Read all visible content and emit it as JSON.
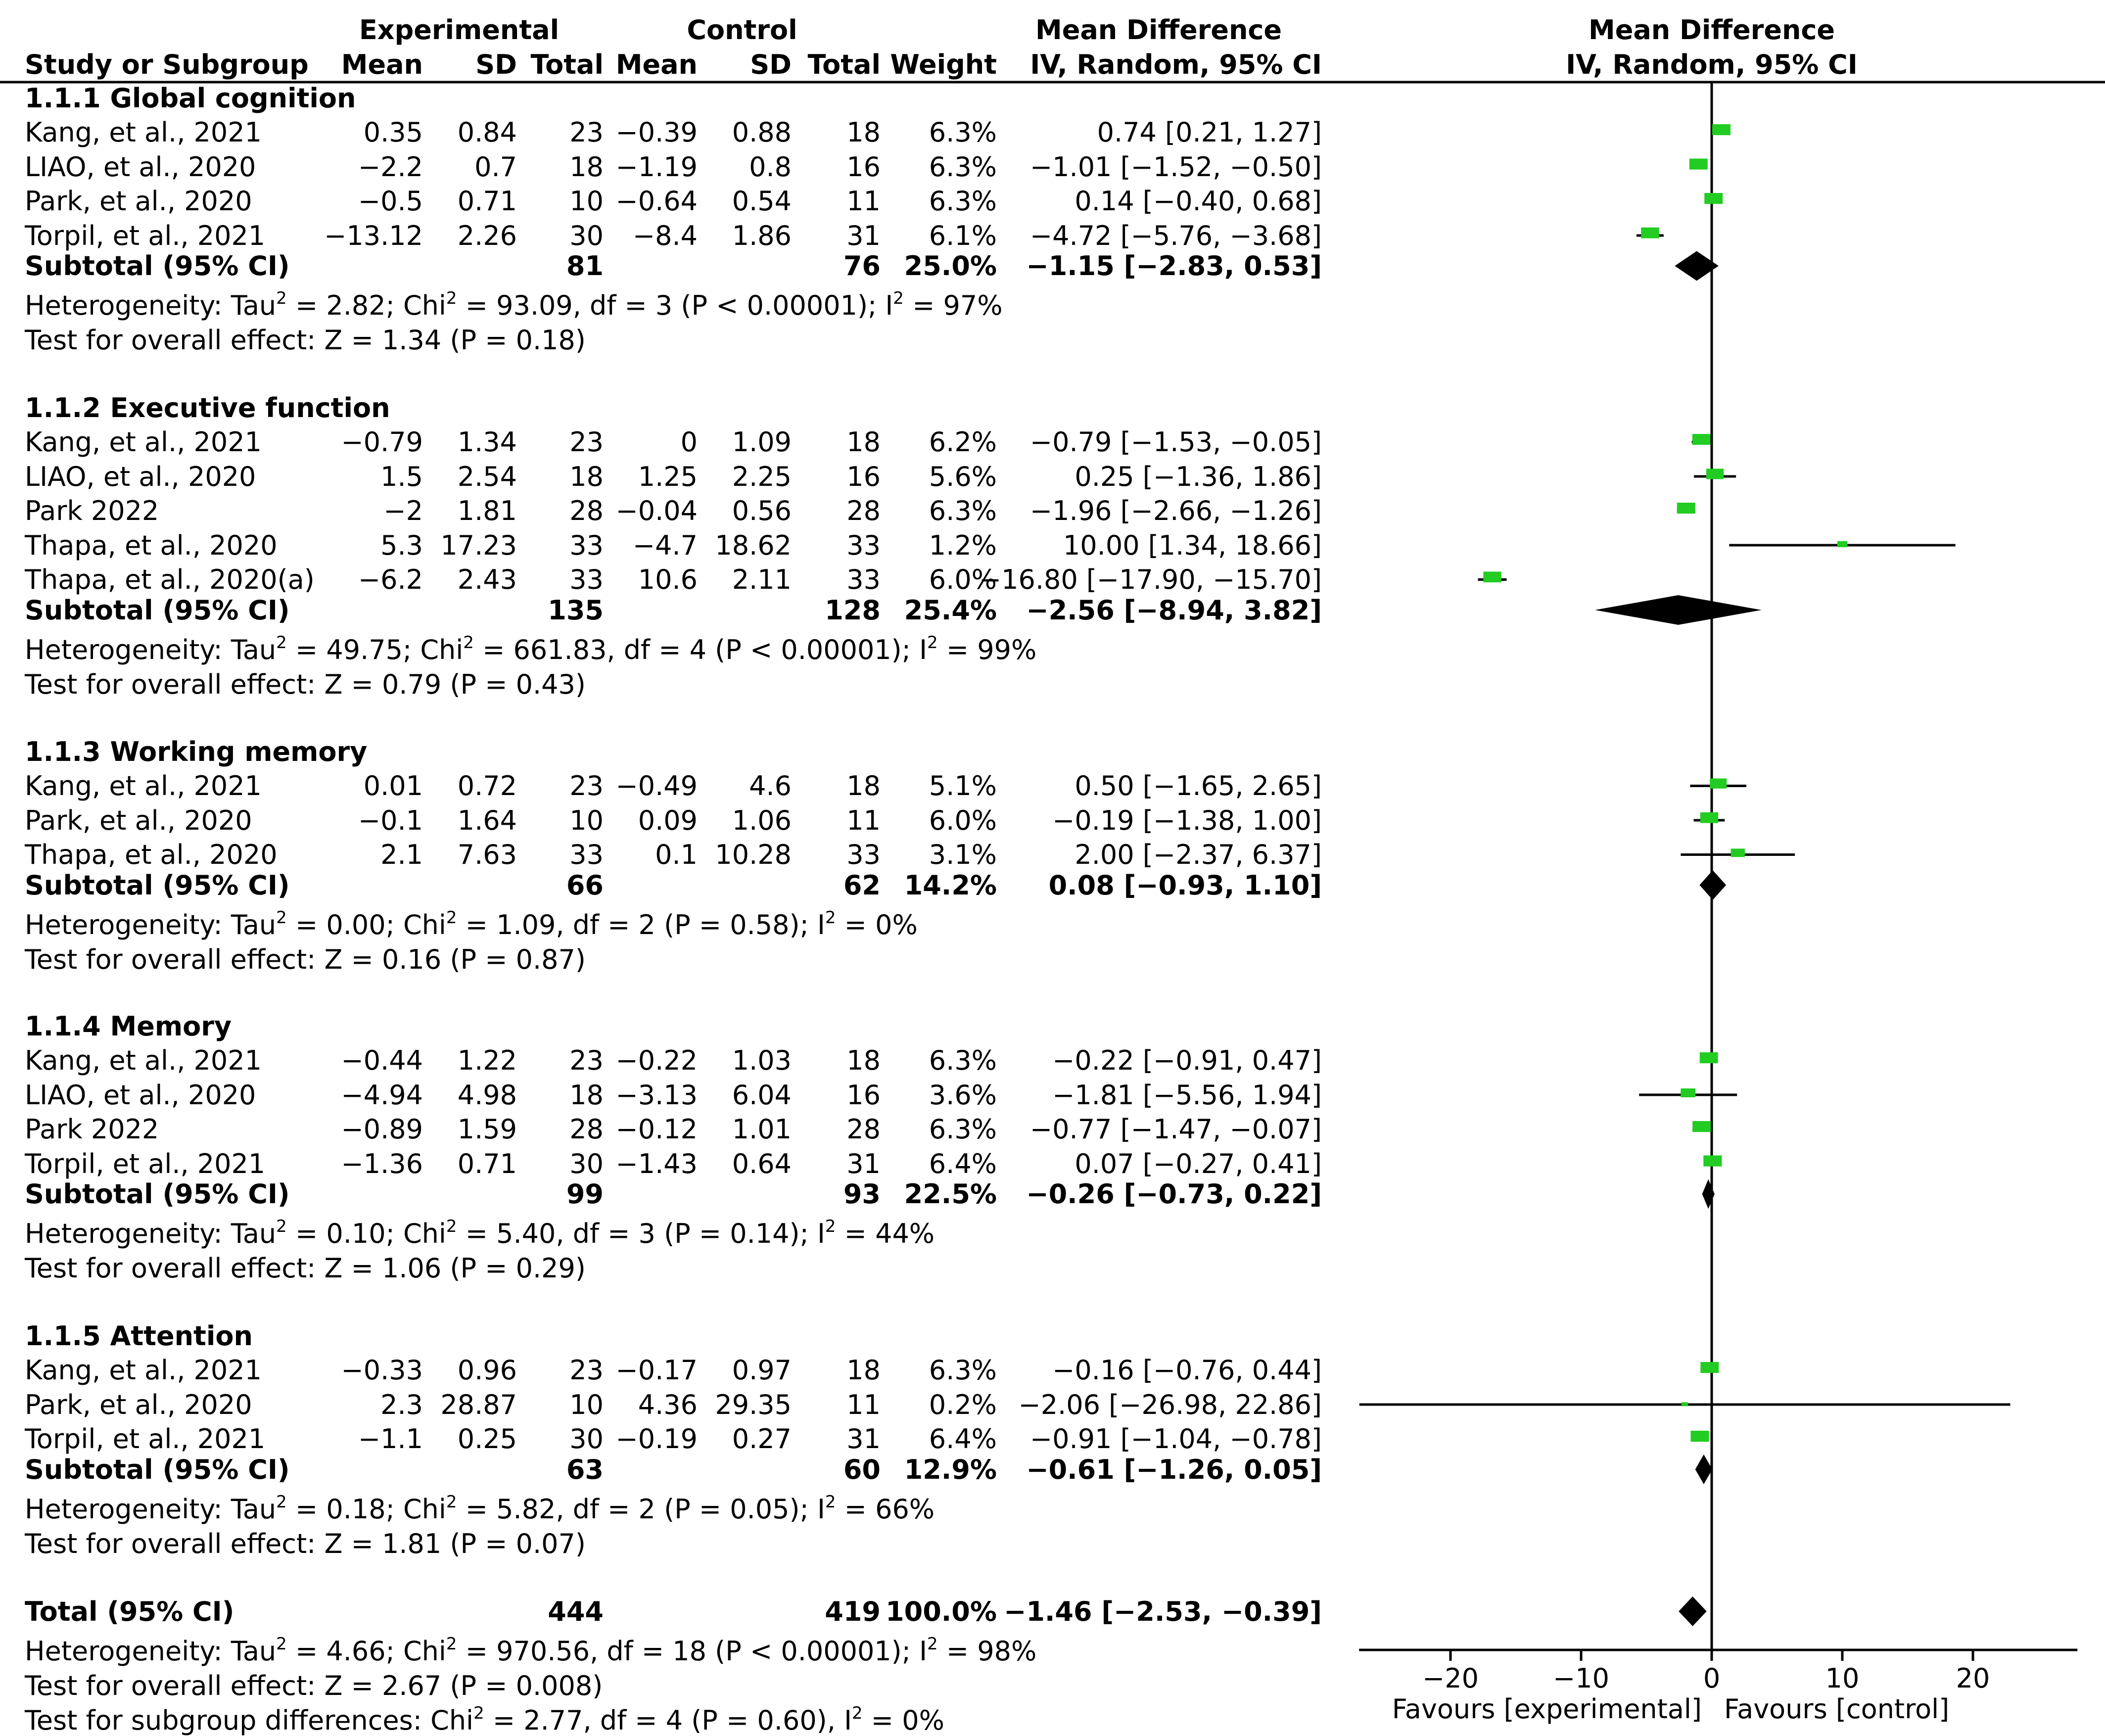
{
  "header": {
    "experimental": "Experimental",
    "control": "Control",
    "mean_difference_left": "Mean Difference",
    "mean_difference_right": "Mean Difference",
    "study_col": "Study or Subgroup",
    "mean_e": "Mean",
    "sd_e": "SD",
    "total_e": "Total",
    "mean_c": "Mean",
    "sd_c": "SD",
    "total_c": "Total",
    "weight": "Weight",
    "method_left": "IV, Random, 95% CI",
    "method_right": "IV, Random, 95% CI"
  },
  "groups": [
    {
      "title": "1.1.1 Global cognition",
      "studies": [
        {
          "name": "Kang, et al., 2021",
          "mean_e": "0.35",
          "sd_e": "0.84",
          "total_e": "23",
          "mean_c": "−0.39",
          "sd_c": "0.88",
          "total_c": "18",
          "weight": "6.3%",
          "ci": "0.74 [0.21, 1.27]"
        },
        {
          "name": "LIAO, et al., 2020",
          "mean_e": "−2.2",
          "sd_e": "0.7",
          "total_e": "18",
          "mean_c": "−1.19",
          "sd_c": "0.8",
          "total_c": "16",
          "weight": "6.3%",
          "ci": "−1.01 [−1.52, −0.50]"
        },
        {
          "name": "Park, et al., 2020",
          "mean_e": "−0.5",
          "sd_e": "0.71",
          "total_e": "10",
          "mean_c": "−0.64",
          "sd_c": "0.54",
          "total_c": "11",
          "weight": "6.3%",
          "ci": "0.14 [−0.40, 0.68]"
        },
        {
          "name": "Torpil, et al., 2021",
          "mean_e": "−13.12",
          "sd_e": "2.26",
          "total_e": "30",
          "mean_c": "−8.4",
          "sd_c": "1.86",
          "total_c": "31",
          "weight": "6.1%",
          "ci": "−4.72 [−5.76, −3.68]"
        }
      ],
      "subtotal": {
        "label": "Subtotal (95% CI)",
        "total_e": "81",
        "total_c": "76",
        "weight": "25.0%",
        "ci": "−1.15 [−2.83, 0.53]"
      },
      "heterogeneity_prefix": "Heterogeneity: Tau",
      "heterogeneity_mid": " = 2.82; Chi",
      "heterogeneity_rest": " = 93.09, df = 3 (P < 0.00001); I",
      "heterogeneity_end": " = 97%",
      "overall": "Test for overall effect: Z = 1.34 (P = 0.18)"
    },
    {
      "title": "1.1.2 Executive function",
      "studies": [
        {
          "name": "Kang, et al., 2021",
          "mean_e": "−0.79",
          "sd_e": "1.34",
          "total_e": "23",
          "mean_c": "0",
          "sd_c": "1.09",
          "total_c": "18",
          "weight": "6.2%",
          "ci": "−0.79 [−1.53, −0.05]"
        },
        {
          "name": "LIAO, et al., 2020",
          "mean_e": "1.5",
          "sd_e": "2.54",
          "total_e": "18",
          "mean_c": "1.25",
          "sd_c": "2.25",
          "total_c": "16",
          "weight": "5.6%",
          "ci": "0.25 [−1.36, 1.86]"
        },
        {
          "name": "Park 2022",
          "mean_e": "−2",
          "sd_e": "1.81",
          "total_e": "28",
          "mean_c": "−0.04",
          "sd_c": "0.56",
          "total_c": "28",
          "weight": "6.3%",
          "ci": "−1.96 [−2.66, −1.26]"
        },
        {
          "name": "Thapa, et al., 2020",
          "mean_e": "5.3",
          "sd_e": "17.23",
          "total_e": "33",
          "mean_c": "−4.7",
          "sd_c": "18.62",
          "total_c": "33",
          "weight": "1.2%",
          "ci": "10.00 [1.34, 18.66]"
        },
        {
          "name": "Thapa, et al., 2020(a)",
          "mean_e": "−6.2",
          "sd_e": "2.43",
          "total_e": "33",
          "mean_c": "10.6",
          "sd_c": "2.11",
          "total_c": "33",
          "weight": "6.0%",
          "ci": "−16.80 [−17.90, −15.70]"
        }
      ],
      "subtotal": {
        "label": "Subtotal (95% CI)",
        "total_e": "135",
        "total_c": "128",
        "weight": "25.4%",
        "ci": "−2.56 [−8.94, 3.82]"
      },
      "heterogeneity_prefix": "Heterogeneity: Tau",
      "heterogeneity_mid": " = 49.75; Chi",
      "heterogeneity_rest": " = 661.83, df = 4 (P < 0.00001); I",
      "heterogeneity_end": " = 99%",
      "overall": "Test for overall effect: Z = 0.79 (P = 0.43)"
    },
    {
      "title": "1.1.3 Working memory",
      "studies": [
        {
          "name": "Kang, et al., 2021",
          "mean_e": "0.01",
          "sd_e": "0.72",
          "total_e": "23",
          "mean_c": "−0.49",
          "sd_c": "4.6",
          "total_c": "18",
          "weight": "5.1%",
          "ci": "0.50 [−1.65, 2.65]"
        },
        {
          "name": "Park, et al., 2020",
          "mean_e": "−0.1",
          "sd_e": "1.64",
          "total_e": "10",
          "mean_c": "0.09",
          "sd_c": "1.06",
          "total_c": "11",
          "weight": "6.0%",
          "ci": "−0.19 [−1.38, 1.00]"
        },
        {
          "name": "Thapa, et al., 2020",
          "mean_e": "2.1",
          "sd_e": "7.63",
          "total_e": "33",
          "mean_c": "0.1",
          "sd_c": "10.28",
          "total_c": "33",
          "weight": "3.1%",
          "ci": "2.00 [−2.37, 6.37]"
        }
      ],
      "subtotal": {
        "label": "Subtotal (95% CI)",
        "total_e": "66",
        "total_c": "62",
        "weight": "14.2%",
        "ci": "0.08 [−0.93, 1.10]"
      },
      "heterogeneity_prefix": "Heterogeneity: Tau",
      "heterogeneity_mid": " = 0.00; Chi",
      "heterogeneity_rest": " = 1.09, df = 2 (P = 0.58); I",
      "heterogeneity_end": " = 0%",
      "overall": "Test for overall effect: Z = 0.16 (P = 0.87)"
    },
    {
      "title": "1.1.4 Memory",
      "studies": [
        {
          "name": "Kang, et al., 2021",
          "mean_e": "−0.44",
          "sd_e": "1.22",
          "total_e": "23",
          "mean_c": "−0.22",
          "sd_c": "1.03",
          "total_c": "18",
          "weight": "6.3%",
          "ci": "−0.22 [−0.91, 0.47]"
        },
        {
          "name": "LIAO, et al., 2020",
          "mean_e": "−4.94",
          "sd_e": "4.98",
          "total_e": "18",
          "mean_c": "−3.13",
          "sd_c": "6.04",
          "total_c": "16",
          "weight": "3.6%",
          "ci": "−1.81 [−5.56, 1.94]"
        },
        {
          "name": "Park 2022",
          "mean_e": "−0.89",
          "sd_e": "1.59",
          "total_e": "28",
          "mean_c": "−0.12",
          "sd_c": "1.01",
          "total_c": "28",
          "weight": "6.3%",
          "ci": "−0.77 [−1.47, −0.07]"
        },
        {
          "name": "Torpil, et al., 2021",
          "mean_e": "−1.36",
          "sd_e": "0.71",
          "total_e": "30",
          "mean_c": "−1.43",
          "sd_c": "0.64",
          "total_c": "31",
          "weight": "6.4%",
          "ci": "0.07 [−0.27, 0.41]"
        }
      ],
      "subtotal": {
        "label": "Subtotal (95% CI)",
        "total_e": "99",
        "total_c": "93",
        "weight": "22.5%",
        "ci": "−0.26 [−0.73, 0.22]"
      },
      "heterogeneity_prefix": "Heterogeneity: Tau",
      "heterogeneity_mid": " = 0.10; Chi",
      "heterogeneity_rest": " = 5.40, df = 3 (P = 0.14); I",
      "heterogeneity_end": " = 44%",
      "overall": "Test for overall effect: Z = 1.06 (P = 0.29)"
    },
    {
      "title": "1.1.5 Attention",
      "studies": [
        {
          "name": "Kang, et al., 2021",
          "mean_e": "−0.33",
          "sd_e": "0.96",
          "total_e": "23",
          "mean_c": "−0.17",
          "sd_c": "0.97",
          "total_c": "18",
          "weight": "6.3%",
          "ci": "−0.16 [−0.76, 0.44]"
        },
        {
          "name": "Park, et al., 2020",
          "mean_e": "2.3",
          "sd_e": "28.87",
          "total_e": "10",
          "mean_c": "4.36",
          "sd_c": "29.35",
          "total_c": "11",
          "weight": "0.2%",
          "ci": "−2.06 [−26.98, 22.86]"
        },
        {
          "name": "Torpil, et al., 2021",
          "mean_e": "−1.1",
          "sd_e": "0.25",
          "total_e": "30",
          "mean_c": "−0.19",
          "sd_c": "0.27",
          "total_c": "31",
          "weight": "6.4%",
          "ci": "−0.91 [−1.04, −0.78]"
        }
      ],
      "subtotal": {
        "label": "Subtotal (95% CI)",
        "total_e": "63",
        "total_c": "60",
        "weight": "12.9%",
        "ci": "−0.61 [−1.26, 0.05]"
      },
      "heterogeneity_prefix": "Heterogeneity: Tau",
      "heterogeneity_mid": " = 0.18; Chi",
      "heterogeneity_rest": " = 5.82, df = 2 (P = 0.05); I",
      "heterogeneity_end": " = 66%",
      "overall": "Test for overall effect: Z = 1.81 (P = 0.07)"
    }
  ],
  "total": {
    "label": "Total (95% CI)",
    "total_e": "444",
    "total_c": "419",
    "weight": "100.0%",
    "ci": "−1.46 [−2.53, −0.39]",
    "heterogeneity_prefix": "Heterogeneity: Tau",
    "heterogeneity_mid": " = 4.66; Chi",
    "heterogeneity_rest": " = 970.56, df = 18 (P < 0.00001); I",
    "heterogeneity_end": " = 98%",
    "overall": "Test for overall effect: Z = 2.67 (P = 0.008)",
    "subgroup_prefix": "Test for subgroup differences: Chi",
    "subgroup_mid": " = 2.77, df = 4 (P = 0.60), I",
    "subgroup_end": " = 0%"
  },
  "squared": "2",
  "colors": {
    "marker": "#22cc22",
    "line": "#000000"
  },
  "chart_data": {
    "type": "forest",
    "title": "Mean Difference IV, Random, 95% CI",
    "xlim": [
      -27,
      28
    ],
    "ticks": [
      -20,
      -10,
      0,
      10,
      20
    ],
    "tick_labels": [
      "−20",
      "−10",
      "0",
      "10",
      "20"
    ],
    "xlabel_left": "Favours [experimental]",
    "xlabel_right": "Favours [control]",
    "null_value": 0,
    "groups": [
      {
        "name": "1.1.1 Global cognition",
        "studies": [
          {
            "name": "Kang, et al., 2021",
            "md": 0.74,
            "lo": 0.21,
            "hi": 1.27,
            "weight": 6.3
          },
          {
            "name": "LIAO, et al., 2020",
            "md": -1.01,
            "lo": -1.52,
            "hi": -0.5,
            "weight": 6.3
          },
          {
            "name": "Park, et al., 2020",
            "md": 0.14,
            "lo": -0.4,
            "hi": 0.68,
            "weight": 6.3
          },
          {
            "name": "Torpil, et al., 2021",
            "md": -4.72,
            "lo": -5.76,
            "hi": -3.68,
            "weight": 6.1
          }
        ],
        "subtotal": {
          "md": -1.15,
          "lo": -2.83,
          "hi": 0.53
        }
      },
      {
        "name": "1.1.2 Executive function",
        "studies": [
          {
            "name": "Kang, et al., 2021",
            "md": -0.79,
            "lo": -1.53,
            "hi": -0.05,
            "weight": 6.2
          },
          {
            "name": "LIAO, et al., 2020",
            "md": 0.25,
            "lo": -1.36,
            "hi": 1.86,
            "weight": 5.6
          },
          {
            "name": "Park 2022",
            "md": -1.96,
            "lo": -2.66,
            "hi": -1.26,
            "weight": 6.3
          },
          {
            "name": "Thapa, et al., 2020",
            "md": 10.0,
            "lo": 1.34,
            "hi": 18.66,
            "weight": 1.2
          },
          {
            "name": "Thapa, et al., 2020(a)",
            "md": -16.8,
            "lo": -17.9,
            "hi": -15.7,
            "weight": 6.0
          }
        ],
        "subtotal": {
          "md": -2.56,
          "lo": -8.94,
          "hi": 3.82
        }
      },
      {
        "name": "1.1.3 Working memory",
        "studies": [
          {
            "name": "Kang, et al., 2021",
            "md": 0.5,
            "lo": -1.65,
            "hi": 2.65,
            "weight": 5.1
          },
          {
            "name": "Park, et al., 2020",
            "md": -0.19,
            "lo": -1.38,
            "hi": 1.0,
            "weight": 6.0
          },
          {
            "name": "Thapa, et al., 2020",
            "md": 2.0,
            "lo": -2.37,
            "hi": 6.37,
            "weight": 3.1
          }
        ],
        "subtotal": {
          "md": 0.08,
          "lo": -0.93,
          "hi": 1.1
        }
      },
      {
        "name": "1.1.4 Memory",
        "studies": [
          {
            "name": "Kang, et al., 2021",
            "md": -0.22,
            "lo": -0.91,
            "hi": 0.47,
            "weight": 6.3
          },
          {
            "name": "LIAO, et al., 2020",
            "md": -1.81,
            "lo": -5.56,
            "hi": 1.94,
            "weight": 3.6
          },
          {
            "name": "Park 2022",
            "md": -0.77,
            "lo": -1.47,
            "hi": -0.07,
            "weight": 6.3
          },
          {
            "name": "Torpil, et al., 2021",
            "md": 0.07,
            "lo": -0.27,
            "hi": 0.41,
            "weight": 6.4
          }
        ],
        "subtotal": {
          "md": -0.26,
          "lo": -0.73,
          "hi": 0.22
        }
      },
      {
        "name": "1.1.5 Attention",
        "studies": [
          {
            "name": "Kang, et al., 2021",
            "md": -0.16,
            "lo": -0.76,
            "hi": 0.44,
            "weight": 6.3
          },
          {
            "name": "Park, et al., 2020",
            "md": -2.06,
            "lo": -26.98,
            "hi": 22.86,
            "weight": 0.2
          },
          {
            "name": "Torpil, et al., 2021",
            "md": -0.91,
            "lo": -1.04,
            "hi": -0.78,
            "weight": 6.4
          }
        ],
        "subtotal": {
          "md": -0.61,
          "lo": -1.26,
          "hi": 0.05
        }
      }
    ],
    "overall": {
      "md": -1.46,
      "lo": -2.53,
      "hi": -0.39
    }
  }
}
